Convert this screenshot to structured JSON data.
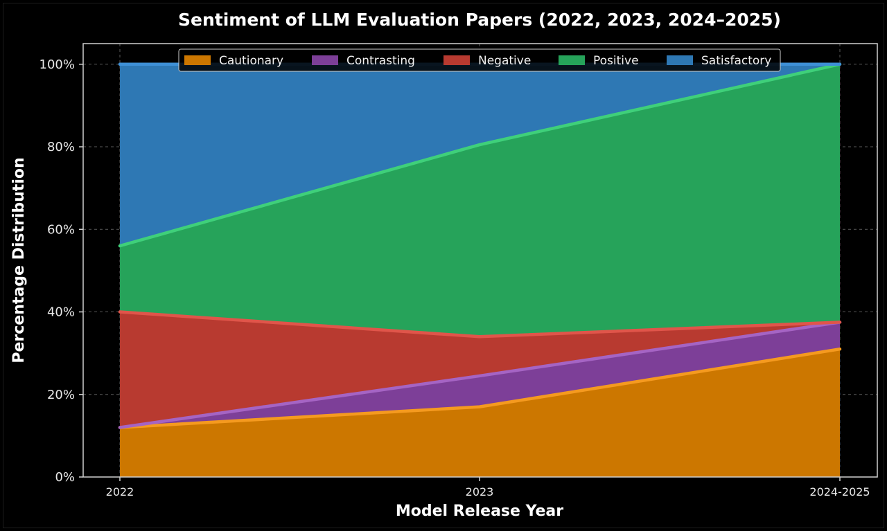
{
  "chart_data": {
    "type": "area",
    "stacked": true,
    "title": "Sentiment of LLM Evaluation Papers (2022, 2023, 2024–2025)",
    "xlabel": "Model Release Year",
    "ylabel": "Percentage Distribution",
    "categories": [
      "2022",
      "2023",
      "2024-2025"
    ],
    "ylim": [
      0,
      1.05
    ],
    "yticks": [
      0,
      0.2,
      0.4,
      0.6,
      0.8,
      1.0
    ],
    "ytick_labels": [
      "0%",
      "20%",
      "40%",
      "60%",
      "80%",
      "100%"
    ],
    "grid": true,
    "legend_position": "top-center",
    "series": [
      {
        "name": "Cautionary",
        "values": [
          0.12,
          0.17,
          0.31
        ],
        "color": "#cc7700",
        "line_color": "#f59a1f"
      },
      {
        "name": "Contrasting",
        "values": [
          0.0,
          0.075,
          0.065
        ],
        "color": "#7d3f98",
        "line_color": "#a564c4"
      },
      {
        "name": "Negative",
        "values": [
          0.28,
          0.095,
          0.0
        ],
        "color": "#b83a30",
        "line_color": "#e0554a"
      },
      {
        "name": "Positive",
        "values": [
          0.16,
          0.465,
          0.625
        ],
        "color": "#26a35a",
        "line_color": "#3fd07a"
      },
      {
        "name": "Satisfactory",
        "values": [
          0.44,
          0.195,
          0.0
        ],
        "color": "#2e78b4",
        "line_color": "#3e90d6"
      }
    ]
  }
}
